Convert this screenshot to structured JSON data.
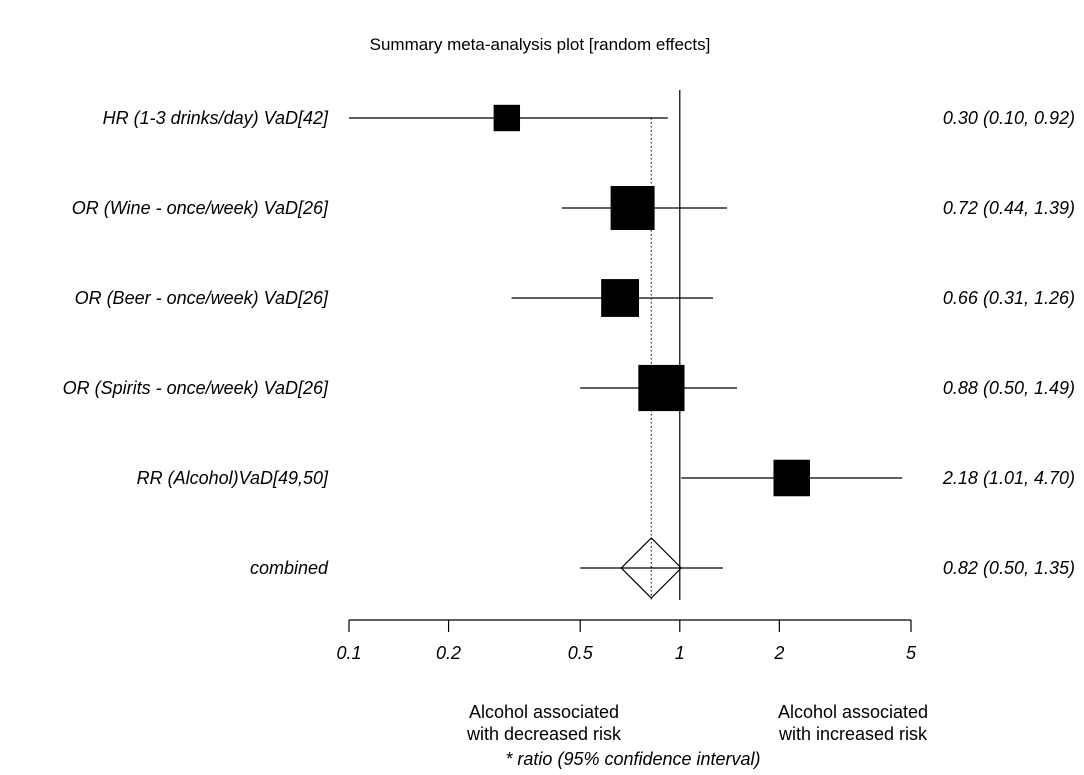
{
  "chart_data": {
    "type": "forest",
    "title": "Summary meta-analysis plot [random effects]",
    "xlabel": "* ratio (95% confidence interval)",
    "x_scale": "log",
    "xlim": [
      0.1,
      5
    ],
    "x_ticks": [
      {
        "value": 0.1,
        "label": "0.1"
      },
      {
        "value": 0.2,
        "label": "0.2"
      },
      {
        "value": 0.5,
        "label": "0.5"
      },
      {
        "value": 1,
        "label": "1"
      },
      {
        "value": 2,
        "label": "2"
      },
      {
        "value": 5,
        "label": "5"
      }
    ],
    "null_line": 1,
    "summary_line": 0.82,
    "studies": [
      {
        "label": "HR (1-3 drinks/day) VaD[42]",
        "estimate": 0.3,
        "lower": 0.1,
        "upper": 0.92,
        "ci_text": "0.30 (0.10, 0.92)",
        "weight": 0.6
      },
      {
        "label": "OR (Wine - once/week) VaD[26]",
        "estimate": 0.72,
        "lower": 0.44,
        "upper": 1.39,
        "ci_text": "0.72 (0.44, 1.39)",
        "weight": 1.0
      },
      {
        "label": "OR (Beer - once/week) VaD[26]",
        "estimate": 0.66,
        "lower": 0.31,
        "upper": 1.26,
        "ci_text": "0.66 (0.31, 1.26)",
        "weight": 0.86
      },
      {
        "label": "OR (Spirits - once/week) VaD[26]",
        "estimate": 0.88,
        "lower": 0.5,
        "upper": 1.49,
        "ci_text": "0.88 (0.50, 1.49)",
        "weight": 1.05
      },
      {
        "label": "RR (Alcohol)VaD[49,50]",
        "estimate": 2.18,
        "lower": 1.01,
        "upper": 4.7,
        "ci_text": "2.18 (1.01, 4.70)",
        "weight": 0.83
      }
    ],
    "combined": {
      "label": "combined",
      "estimate": 0.82,
      "lower": 0.5,
      "upper": 1.35,
      "ci_text": "0.82 (0.50, 1.35)"
    },
    "notes": {
      "left": [
        "Alcohol associated",
        "with decreased risk"
      ],
      "right": [
        "Alcohol associated",
        "with increased risk"
      ]
    }
  }
}
